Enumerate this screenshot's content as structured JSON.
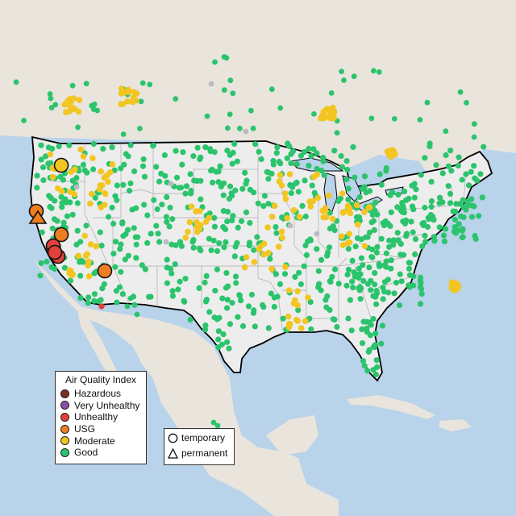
{
  "map": {
    "legend": {
      "title": "Air Quality Index",
      "categories": [
        {
          "label": "Hazardous",
          "color": "#7e2d23",
          "icon": "dot"
        },
        {
          "label": "Very Unhealthy",
          "color": "#8a50a8",
          "icon": "dot"
        },
        {
          "label": "Unhealthy",
          "color": "#e2413a",
          "icon": "dot"
        },
        {
          "label": "USG",
          "color": "#ee7d22",
          "icon": "dot"
        },
        {
          "label": "Moderate",
          "color": "#f2c521",
          "icon": "dot"
        },
        {
          "label": "Good",
          "color": "#2bc46d",
          "icon": "dot"
        }
      ]
    },
    "type_legend": {
      "items": [
        {
          "label": "temporary",
          "icon": "circle-icon"
        },
        {
          "label": "permanent",
          "icon": "triangle-icon"
        }
      ]
    },
    "colors": {
      "ocean": "#b8d3ea",
      "land_us": "#ededed",
      "land_other": "#e9e4dc",
      "border": "#000000",
      "state_line": "#aaaaaa",
      "good": "#2bc46d",
      "moderate": "#f2c521",
      "usg": "#ee7d22",
      "unhealthy": "#e2413a",
      "no_data": "#b8bcc0"
    }
  }
}
